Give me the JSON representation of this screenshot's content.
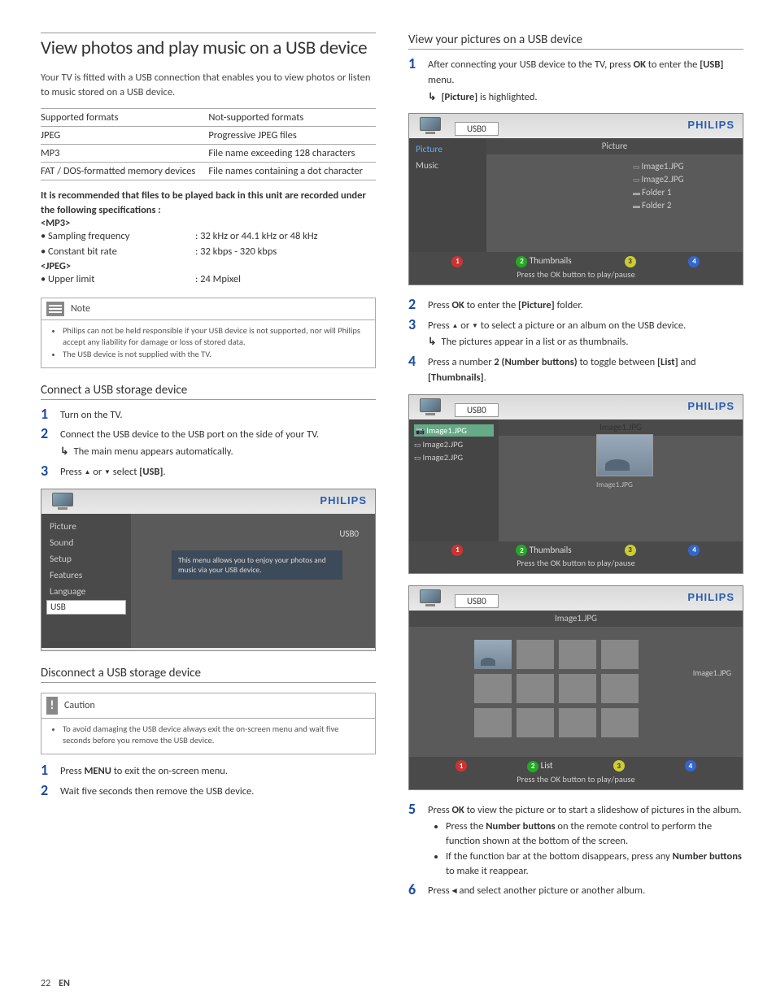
{
  "left": {
    "title": "View photos and play music on a USB device",
    "intro": "Your TV is fitted with a USB connection that enables you to view photos or listen to music stored on a USB device.",
    "formats": {
      "head_l": "Supported formats",
      "head_r": "Not-supported formats",
      "rows": [
        [
          "JPEG",
          "Progressive JPEG files"
        ],
        [
          "MP3",
          "File name exceeding 128 characters"
        ],
        [
          "FAT / DOS-formatted memory devices",
          "File names containing a dot character"
        ]
      ]
    },
    "spec_title": "It is recommended that files to be played back in this unit are recorded under the following specifications :",
    "mp3_label": "<MP3>",
    "mp3_rows": [
      [
        "• Sampling frequency",
        ": 32 kHz or 44.1 kHz or 48 kHz"
      ],
      [
        "• Constant bit rate",
        ": 32 kbps - 320 kbps"
      ]
    ],
    "jpeg_label": "<JPEG>",
    "jpeg_rows": [
      [
        "• Upper limit",
        ": 24 Mpixel"
      ]
    ],
    "note_title": "Note",
    "note_items": [
      "Philips can not be held responsible if your USB device is not supported, nor will Philips accept any liability for damage or loss of stored data.",
      "The USB device is not supplied with the TV."
    ],
    "connect_h": "Connect a USB storage device",
    "connect_steps": [
      {
        "n": "1",
        "t": "Turn on the TV."
      },
      {
        "n": "2",
        "t": "Connect the USB device to the USB port on the side of your TV.",
        "arrow": "The main menu appears automatically."
      },
      {
        "n": "3",
        "t_html": "Press <span class='tri-up'></span> or <span class='tri-down'></span> select <b>[USB]</b>."
      }
    ],
    "mainmenu": {
      "brand": "PHILIPS",
      "items": [
        "Picture",
        "Sound",
        "Setup",
        "Features",
        "Language",
        "USB"
      ],
      "selected": "USB",
      "hint": "This menu allows you to enjoy your photos and music via your USB device.",
      "usb0": "USB0"
    },
    "disconnect_h": "Disconnect a USB storage device",
    "caution_title": "Caution",
    "caution_items": [
      "To avoid damaging the USB device always exit the on-screen menu and wait five seconds before you remove the USB device."
    ],
    "disconnect_steps": [
      {
        "n": "1",
        "t_html": "Press <b>MENU</b> to exit the on-screen menu."
      },
      {
        "n": "2",
        "t": "Wait five seconds then remove the USB device."
      }
    ]
  },
  "right": {
    "h": "View your pictures on a USB device",
    "step1": {
      "n": "1",
      "t_html": "After connecting your USB device to the TV, press <b>OK</b> to enter the <b>[USB]</b> menu.",
      "arrow_html": "<b>[Picture]</b> is highlighted."
    },
    "tvA": {
      "tab": "USB0",
      "brand": "PHILIPS",
      "crumb": "Picture",
      "side": [
        "Picture",
        "Music"
      ],
      "side_hl": "Picture",
      "files": [
        {
          "t": "Image1.JPG",
          "k": "fi"
        },
        {
          "t": "Image2.JPG",
          "k": "fi"
        },
        {
          "t": "Folder 1",
          "k": "fo"
        },
        {
          "t": "Folder 2",
          "k": "fo"
        }
      ],
      "foot_label": "Thumbnails",
      "foot_msg": "Press the OK button to play/pause"
    },
    "step2": {
      "n": "2",
      "t_html": "Press <b>OK</b> to enter the <b>[Picture]</b> folder."
    },
    "step3": {
      "n": "3",
      "t_html": "Press <span class='tri-up'></span> or <span class='tri-down'></span> to select a picture or an album on the USB device.",
      "arrow": "The pictures appear in a list or as thumbnails."
    },
    "step4": {
      "n": "4",
      "t_html": "Press a number <b>2 (Number buttons)</b> to toggle between <b>[List]</b> and <b>[Thumbnails]</b>."
    },
    "tvB": {
      "tab": "USB0",
      "brand": "PHILIPS",
      "crumb": "Image1.JPG",
      "side": [
        "Image1.JPG",
        "Image2.JPG",
        "Image2.JPG"
      ],
      "thumb_cap": "Image1.JPG",
      "foot_label": "Thumbnails",
      "foot_msg": "Press the OK button to play/pause"
    },
    "tvC": {
      "tab": "USB0",
      "brand": "PHILIPS",
      "crumb": "Image1.JPG",
      "grid_label": "Image1.JPG",
      "foot_label": "List",
      "foot_msg": "Press the OK button to play/pause"
    },
    "step5": {
      "n": "5",
      "t_html": "Press <b>OK</b> to view the picture or to start a slideshow of pictures in the album.",
      "bullets": [
        "Press the <b>Number buttons</b> on the remote control to perform the function shown at the bottom of the screen.",
        "If the function bar at the bottom disappears, press any <b>Number buttons</b> to make it reappear."
      ]
    },
    "step6": {
      "n": "6",
      "t_html": "Press <span class='tri-left'></span> and select another picture or another album."
    }
  },
  "footer": {
    "page": "22",
    "lang": "EN"
  }
}
